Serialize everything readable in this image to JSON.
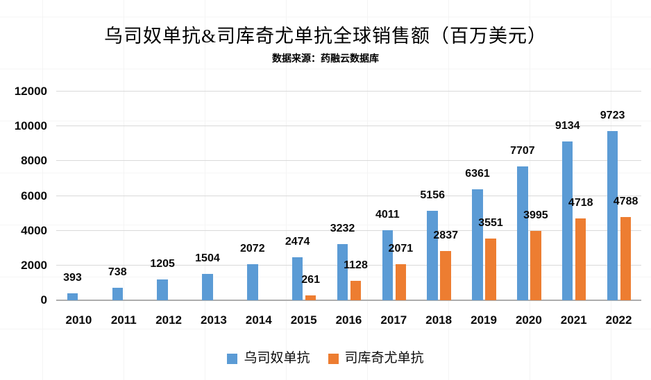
{
  "chart_data": {
    "type": "bar",
    "title": "乌司奴单抗&司库奇尤单抗全球销售额（百万美元）",
    "subtitle": "数据来源：药融云数据库",
    "categories": [
      "2010",
      "2011",
      "2012",
      "2013",
      "2014",
      "2015",
      "2016",
      "2017",
      "2018",
      "2019",
      "2020",
      "2021",
      "2022"
    ],
    "series": [
      {
        "name": "乌司奴单抗",
        "color": "#5B9BD5",
        "values": [
          393,
          738,
          1205,
          1504,
          2072,
          2474,
          3232,
          4011,
          5156,
          6361,
          7707,
          9134,
          9723
        ]
      },
      {
        "name": "司库奇尤单抗",
        "color": "#ED7D31",
        "values": [
          null,
          null,
          null,
          null,
          null,
          261,
          1128,
          2071,
          2837,
          3551,
          3995,
          4718,
          4788
        ]
      }
    ],
    "xlabel": "",
    "ylabel": "",
    "ylim": [
      0,
      12000
    ],
    "y_ticks": [
      0,
      2000,
      4000,
      6000,
      8000,
      10000,
      12000
    ],
    "grid": "horizontal",
    "data_labels": true,
    "legend_position": "bottom",
    "colors": {
      "gridline": "#D9D9D9",
      "axis": "#ADADAD",
      "label_text": "#0a0a0a"
    }
  }
}
